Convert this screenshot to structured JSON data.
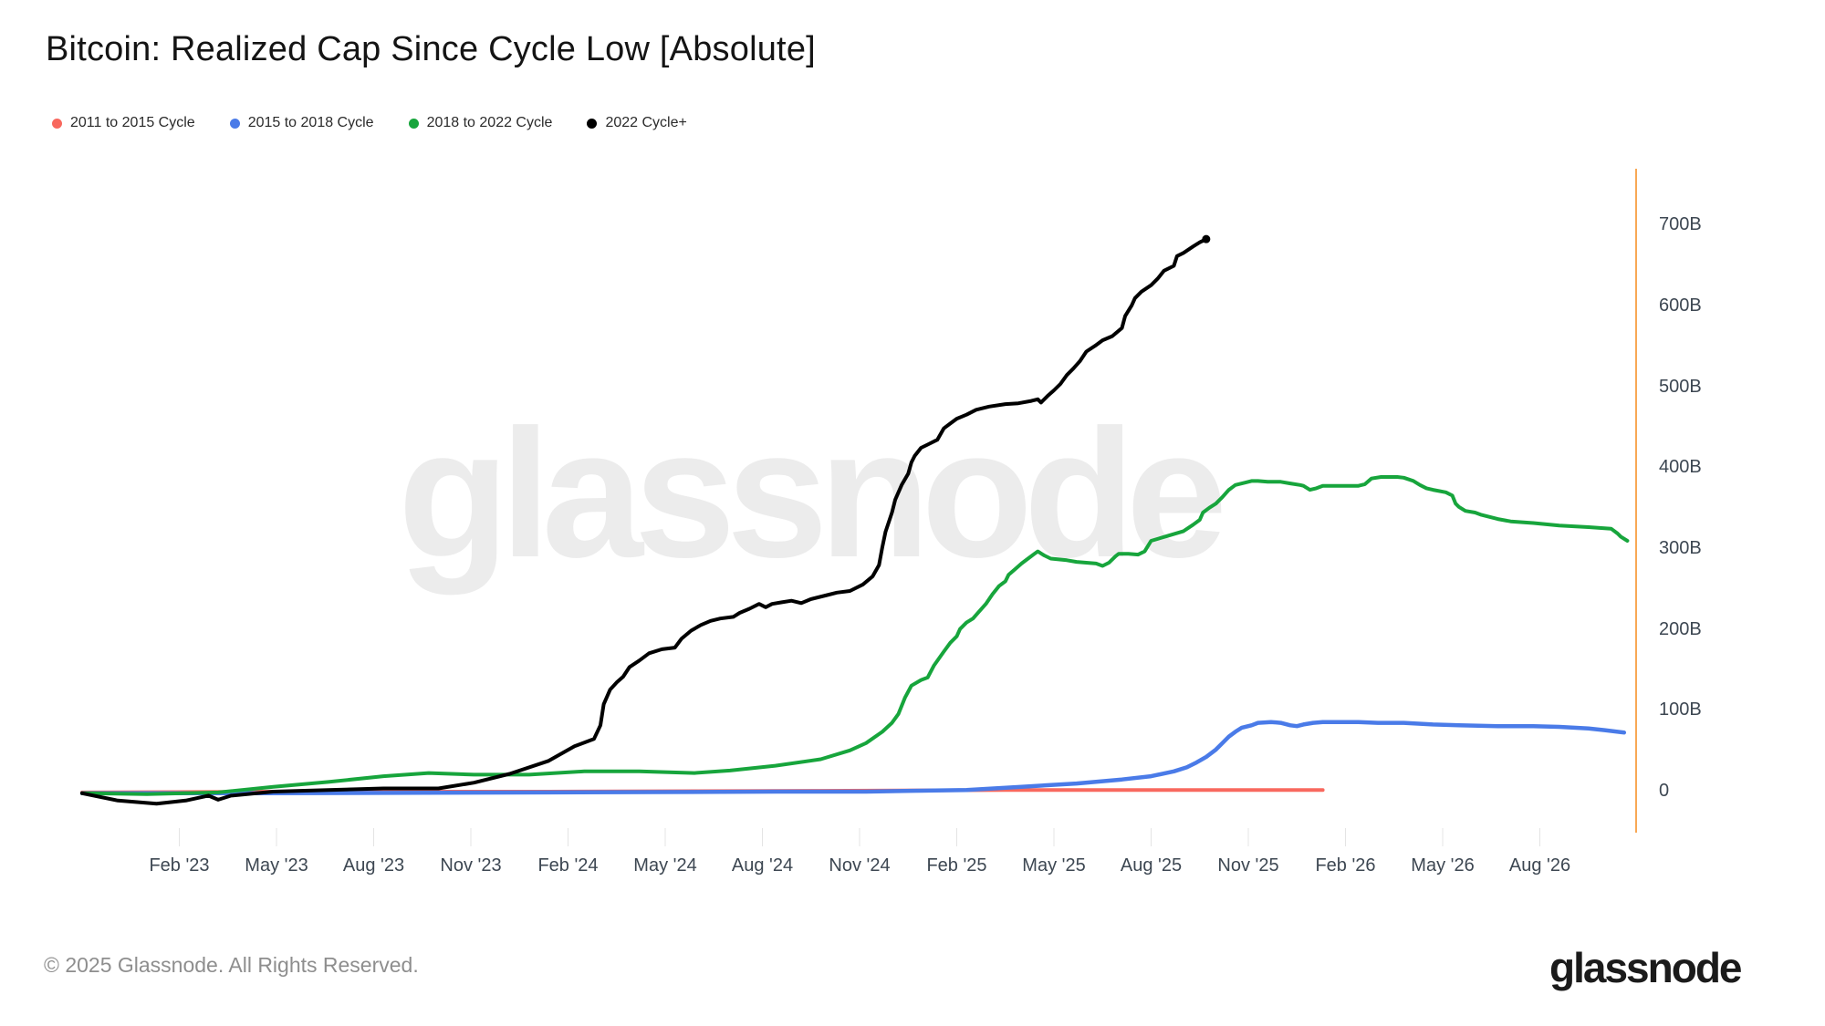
{
  "header": {
    "title": "Bitcoin: Realized Cap Since Cycle Low [Absolute]"
  },
  "legend": [
    {
      "label": "2011 to 2015 Cycle",
      "color": "#f8685e"
    },
    {
      "label": "2015 to 2018 Cycle",
      "color": "#4a7be8"
    },
    {
      "label": "2018 to 2022 Cycle",
      "color": "#17a53c"
    },
    {
      "label": "2022 Cycle+",
      "color": "#000000"
    }
  ],
  "watermark": {
    "text": "glassnode"
  },
  "footer": {
    "copyright": "© 2025 Glassnode. All Rights Reserved.",
    "brand": "glassnode"
  },
  "chart_data": {
    "type": "line",
    "title": "Bitcoin: Realized Cap Since Cycle Low [Absolute]",
    "x_unit": "months since cycle low (dates shown for 2022 cycle)",
    "y_unit": "USD billions",
    "grid": false,
    "legend_position": "top-left",
    "axis_color": "#f8a855",
    "tick_color": "#e4e4e4",
    "ylim": [
      0,
      700
    ],
    "x_axis": {
      "ticks": [
        {
          "month": 3,
          "label": "Feb '23"
        },
        {
          "month": 6,
          "label": "May '23"
        },
        {
          "month": 9,
          "label": "Aug '23"
        },
        {
          "month": 12,
          "label": "Nov '23"
        },
        {
          "month": 15,
          "label": "Feb '24"
        },
        {
          "month": 18,
          "label": "May '24"
        },
        {
          "month": 21,
          "label": "Aug '24"
        },
        {
          "month": 24,
          "label": "Nov '24"
        },
        {
          "month": 27,
          "label": "Feb '25"
        },
        {
          "month": 30,
          "label": "May '25"
        },
        {
          "month": 33,
          "label": "Aug '25"
        },
        {
          "month": 36,
          "label": "Nov '25"
        },
        {
          "month": 39,
          "label": "Feb '26"
        },
        {
          "month": 42,
          "label": "May '26"
        },
        {
          "month": 45,
          "label": "Aug '26"
        }
      ]
    },
    "y_axis": {
      "ticks": [
        {
          "value": 0,
          "label": "0"
        },
        {
          "value": 100,
          "label": "100B"
        },
        {
          "value": 200,
          "label": "200B"
        },
        {
          "value": 300,
          "label": "300B"
        },
        {
          "value": 400,
          "label": "400B"
        },
        {
          "value": 500,
          "label": "500B"
        },
        {
          "value": 600,
          "label": "600B"
        },
        {
          "value": 700,
          "label": "700B"
        }
      ]
    },
    "series": [
      {
        "name": "2011 to 2015 Cycle",
        "color": "#f8685e",
        "width": 4,
        "end_marker": false,
        "points": [
          [
            0,
            -1
          ],
          [
            5.9,
            0
          ],
          [
            14.4,
            0
          ],
          [
            22.8,
            1
          ],
          [
            28.5,
            2
          ],
          [
            32.7,
            2
          ],
          [
            35.5,
            2
          ],
          [
            38.3,
            2
          ]
        ]
      },
      {
        "name": "2015 to 2018 Cycle",
        "color": "#4a7be8",
        "width": 4.5,
        "end_marker": false,
        "points": [
          [
            0,
            -2
          ],
          [
            5.9,
            -2
          ],
          [
            14.4,
            -1
          ],
          [
            21.4,
            0
          ],
          [
            24.2,
            0
          ],
          [
            25.6,
            1
          ],
          [
            27.3,
            2
          ],
          [
            29,
            6
          ],
          [
            30.7,
            10
          ],
          [
            32.1,
            15
          ],
          [
            33,
            19
          ],
          [
            33.7,
            25
          ],
          [
            34.1,
            30
          ],
          [
            34.4,
            36
          ],
          [
            34.7,
            43
          ],
          [
            35,
            52
          ],
          [
            35.2,
            60
          ],
          [
            35.4,
            68
          ],
          [
            35.6,
            74
          ],
          [
            35.8,
            79
          ],
          [
            36.1,
            82
          ],
          [
            36.3,
            85
          ],
          [
            36.7,
            86
          ],
          [
            37,
            85
          ],
          [
            37.3,
            82
          ],
          [
            37.5,
            81
          ],
          [
            37.7,
            83
          ],
          [
            38,
            85
          ],
          [
            38.3,
            86
          ],
          [
            38.9,
            86
          ],
          [
            39.4,
            86
          ],
          [
            40,
            85
          ],
          [
            40.8,
            85
          ],
          [
            41.7,
            83
          ],
          [
            42.5,
            82
          ],
          [
            43.7,
            81
          ],
          [
            44.8,
            81
          ],
          [
            45.6,
            80
          ],
          [
            46.5,
            78
          ],
          [
            47,
            76
          ],
          [
            47.6,
            73
          ]
        ]
      },
      {
        "name": "2018 to 2022 Cycle",
        "color": "#17a53c",
        "width": 4,
        "end_marker": false,
        "points": [
          [
            0,
            -2
          ],
          [
            2,
            -3
          ],
          [
            4.2,
            -1
          ],
          [
            5.9,
            6
          ],
          [
            7.6,
            12
          ],
          [
            9.3,
            19
          ],
          [
            10.7,
            23
          ],
          [
            12.1,
            21
          ],
          [
            13.8,
            21
          ],
          [
            15.5,
            25
          ],
          [
            17.2,
            25
          ],
          [
            18.9,
            23
          ],
          [
            20,
            26
          ],
          [
            21.4,
            32
          ],
          [
            22.8,
            40
          ],
          [
            23.7,
            51
          ],
          [
            24.2,
            60
          ],
          [
            24.7,
            74
          ],
          [
            25,
            85
          ],
          [
            25.2,
            96
          ],
          [
            25.4,
            116
          ],
          [
            25.6,
            131
          ],
          [
            25.9,
            138
          ],
          [
            26.1,
            141
          ],
          [
            26.3,
            156
          ],
          [
            26.6,
            173
          ],
          [
            26.8,
            184
          ],
          [
            27,
            192
          ],
          [
            27.1,
            201
          ],
          [
            27.3,
            209
          ],
          [
            27.5,
            214
          ],
          [
            27.7,
            223
          ],
          [
            27.9,
            232
          ],
          [
            28.1,
            244
          ],
          [
            28.3,
            254
          ],
          [
            28.5,
            260
          ],
          [
            28.6,
            268
          ],
          [
            28.8,
            275
          ],
          [
            29,
            282
          ],
          [
            29.2,
            288
          ],
          [
            29.4,
            294
          ],
          [
            29.5,
            297
          ],
          [
            29.7,
            292
          ],
          [
            29.9,
            288
          ],
          [
            30.4,
            286
          ],
          [
            30.7,
            284
          ],
          [
            31,
            283
          ],
          [
            31.3,
            282
          ],
          [
            31.5,
            279
          ],
          [
            31.7,
            283
          ],
          [
            31.9,
            291
          ],
          [
            32,
            294
          ],
          [
            32.3,
            294
          ],
          [
            32.6,
            293
          ],
          [
            32.8,
            297
          ],
          [
            33,
            310
          ],
          [
            33.5,
            316
          ],
          [
            34,
            322
          ],
          [
            34.3,
            330
          ],
          [
            34.5,
            336
          ],
          [
            34.6,
            345
          ],
          [
            34.8,
            351
          ],
          [
            35,
            356
          ],
          [
            35.2,
            364
          ],
          [
            35.4,
            373
          ],
          [
            35.6,
            379
          ],
          [
            35.9,
            382
          ],
          [
            36.1,
            384
          ],
          [
            36.3,
            384
          ],
          [
            36.6,
            383
          ],
          [
            37,
            383
          ],
          [
            37.3,
            381
          ],
          [
            37.6,
            379
          ],
          [
            37.7,
            378
          ],
          [
            37.9,
            373
          ],
          [
            38.1,
            375
          ],
          [
            38.3,
            378
          ],
          [
            38.7,
            378
          ],
          [
            39.4,
            378
          ],
          [
            39.6,
            380
          ],
          [
            39.8,
            387
          ],
          [
            40.1,
            389
          ],
          [
            40.6,
            389
          ],
          [
            40.8,
            388
          ],
          [
            41.1,
            384
          ],
          [
            41.3,
            379
          ],
          [
            41.5,
            375
          ],
          [
            41.7,
            373
          ],
          [
            42.1,
            370
          ],
          [
            42.3,
            366
          ],
          [
            42.4,
            356
          ],
          [
            42.5,
            352
          ],
          [
            42.7,
            347
          ],
          [
            43,
            345
          ],
          [
            43.2,
            342
          ],
          [
            43.7,
            337
          ],
          [
            44.1,
            334
          ],
          [
            44.8,
            332
          ],
          [
            45.6,
            329
          ],
          [
            46.5,
            327
          ],
          [
            47.2,
            325
          ],
          [
            47.4,
            319
          ],
          [
            47.5,
            315
          ],
          [
            47.7,
            310
          ]
        ]
      },
      {
        "name": "2022 Cycle+",
        "color": "#000000",
        "width": 4,
        "end_marker": true,
        "points": [
          [
            0,
            -2
          ],
          [
            1.1,
            -11
          ],
          [
            2.3,
            -15
          ],
          [
            3.2,
            -11
          ],
          [
            3.9,
            -5
          ],
          [
            4.2,
            -10
          ],
          [
            4.6,
            -5
          ],
          [
            5.9,
            0
          ],
          [
            7.6,
            2
          ],
          [
            9.3,
            4
          ],
          [
            11,
            4
          ],
          [
            12.1,
            11
          ],
          [
            13.2,
            22
          ],
          [
            14.4,
            38
          ],
          [
            15.2,
            56
          ],
          [
            15.8,
            65
          ],
          [
            16,
            82
          ],
          [
            16.1,
            108
          ],
          [
            16.3,
            126
          ],
          [
            16.5,
            135
          ],
          [
            16.7,
            142
          ],
          [
            16.9,
            154
          ],
          [
            17.2,
            162
          ],
          [
            17.5,
            171
          ],
          [
            17.9,
            176
          ],
          [
            18.3,
            178
          ],
          [
            18.5,
            189
          ],
          [
            18.8,
            199
          ],
          [
            19.1,
            206
          ],
          [
            19.4,
            211
          ],
          [
            19.7,
            214
          ],
          [
            20.1,
            216
          ],
          [
            20.3,
            221
          ],
          [
            20.6,
            226
          ],
          [
            20.9,
            232
          ],
          [
            21.1,
            228
          ],
          [
            21.3,
            232
          ],
          [
            21.6,
            234
          ],
          [
            21.9,
            236
          ],
          [
            22.2,
            233
          ],
          [
            22.5,
            238
          ],
          [
            23,
            243
          ],
          [
            23.3,
            246
          ],
          [
            23.7,
            248
          ],
          [
            24.1,
            256
          ],
          [
            24.4,
            266
          ],
          [
            24.6,
            280
          ],
          [
            24.7,
            302
          ],
          [
            24.8,
            321
          ],
          [
            25,
            345
          ],
          [
            25.1,
            361
          ],
          [
            25.3,
            379
          ],
          [
            25.5,
            393
          ],
          [
            25.6,
            407
          ],
          [
            25.7,
            415
          ],
          [
            25.9,
            425
          ],
          [
            26.1,
            429
          ],
          [
            26.4,
            435
          ],
          [
            26.6,
            449
          ],
          [
            26.8,
            455
          ],
          [
            27,
            461
          ],
          [
            27.3,
            466
          ],
          [
            27.6,
            472
          ],
          [
            28,
            476
          ],
          [
            28.5,
            479
          ],
          [
            28.9,
            480
          ],
          [
            29.3,
            483
          ],
          [
            29.5,
            485
          ],
          [
            29.6,
            481
          ],
          [
            29.8,
            489
          ],
          [
            30,
            496
          ],
          [
            30.2,
            504
          ],
          [
            30.4,
            515
          ],
          [
            30.6,
            523
          ],
          [
            30.8,
            532
          ],
          [
            31,
            544
          ],
          [
            31.3,
            552
          ],
          [
            31.5,
            558
          ],
          [
            31.8,
            563
          ],
          [
            32.1,
            573
          ],
          [
            32.2,
            588
          ],
          [
            32.4,
            601
          ],
          [
            32.5,
            610
          ],
          [
            32.7,
            618
          ],
          [
            33,
            626
          ],
          [
            33.2,
            634
          ],
          [
            33.4,
            644
          ],
          [
            33.7,
            650
          ],
          [
            33.8,
            662
          ],
          [
            34,
            666
          ],
          [
            34.3,
            674
          ],
          [
            34.5,
            679
          ],
          [
            34.7,
            683
          ]
        ]
      }
    ]
  }
}
